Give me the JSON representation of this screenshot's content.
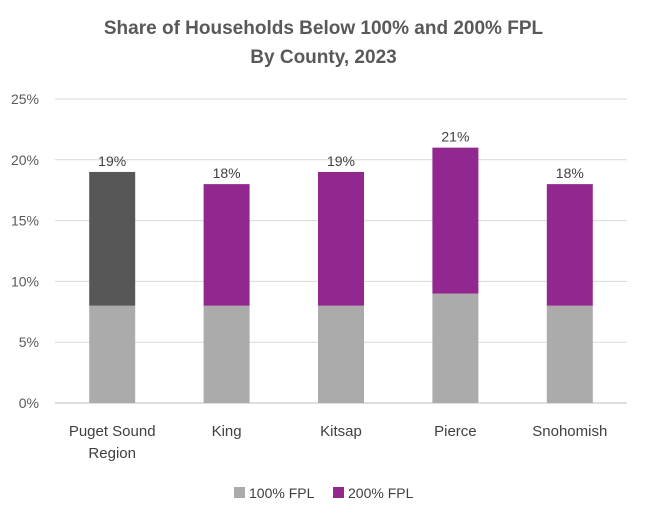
{
  "chart_data": {
    "type": "bar",
    "stacked": true,
    "title_line1": "Share of Households Below 100% and 200% FPL",
    "title_line2": "By County, 2023",
    "categories": [
      [
        "Puget Sound",
        "Region"
      ],
      [
        "King"
      ],
      [
        "Kitsap"
      ],
      [
        "Pierce"
      ],
      [
        "Snohomish"
      ]
    ],
    "category_names": [
      "Puget Sound Region",
      "King",
      "Kitsap",
      "Pierce",
      "Snohomish"
    ],
    "series": [
      {
        "name": "100% FPL",
        "values": [
          8,
          8,
          8,
          9,
          8
        ]
      },
      {
        "name": "200% FPL",
        "values": [
          11,
          10,
          11,
          12,
          10
        ]
      }
    ],
    "totals": [
      "19%",
      "18%",
      "19%",
      "21%",
      "18%"
    ],
    "total_values": [
      19,
      18,
      19,
      21,
      18
    ],
    "yticks": [
      "0%",
      "5%",
      "10%",
      "15%",
      "20%",
      "25%"
    ],
    "ytick_values": [
      0,
      5,
      10,
      15,
      20,
      25
    ],
    "ylim": [
      0,
      25
    ],
    "legend_position": "bottom-center",
    "grid": true
  },
  "colors": {
    "fpl100": "#ababab",
    "fpl200": "#92278f",
    "region_top": "#575757",
    "grid": "#d9d9d9",
    "axis": "#bfbfbf"
  }
}
